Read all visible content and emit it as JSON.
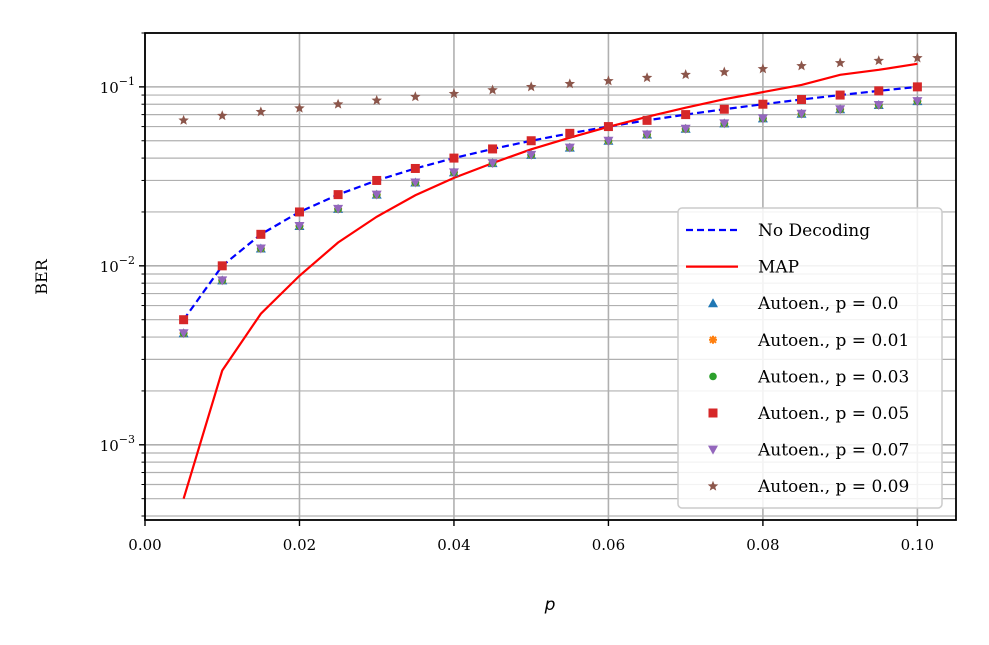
{
  "chart_data": {
    "type": "line",
    "xlabel": "p",
    "ylabel": "BER",
    "xlim": [
      0.0,
      0.105
    ],
    "ylim": [
      0.00038,
      0.2
    ],
    "yscale": "log",
    "grid": true,
    "legend_position": "lower-right",
    "x_ticks": [
      "0.00",
      "0.02",
      "0.04",
      "0.06",
      "0.08",
      "0.10"
    ],
    "x_tick_values": [
      0.0,
      0.02,
      0.04,
      0.06,
      0.08,
      0.1
    ],
    "y_ticks": [
      {
        "mantissa": "10",
        "exp": "−3",
        "value": 0.001
      },
      {
        "mantissa": "10",
        "exp": "−2",
        "value": 0.01
      },
      {
        "mantissa": "10",
        "exp": "−1",
        "value": 0.1
      }
    ],
    "x": [
      0.005,
      0.01,
      0.015,
      0.02,
      0.025,
      0.03,
      0.035,
      0.04,
      0.045,
      0.05,
      0.055,
      0.06,
      0.065,
      0.07,
      0.075,
      0.08,
      0.085,
      0.09,
      0.095,
      0.1
    ],
    "series": [
      {
        "name": "No Decoding",
        "style": "dashed-line",
        "color": "#0000ff",
        "values": [
          0.005,
          0.01,
          0.015,
          0.02,
          0.025,
          0.03,
          0.035,
          0.04,
          0.045,
          0.05,
          0.055,
          0.06,
          0.065,
          0.07,
          0.075,
          0.08,
          0.085,
          0.09,
          0.095,
          0.1
        ]
      },
      {
        "name": "MAP",
        "style": "line",
        "color": "#ff0000",
        "values": [
          0.0005,
          0.0026,
          0.0054,
          0.0088,
          0.0135,
          0.0188,
          0.0248,
          0.031,
          0.0375,
          0.0448,
          0.052,
          0.0598,
          0.068,
          0.0765,
          0.0853,
          0.0935,
          0.1025,
          0.1168,
          0.1245,
          0.1345
        ]
      },
      {
        "name": "Autoen., p = 0.0",
        "style": "marker",
        "marker": "triangle-up",
        "color": "#1f77b4",
        "values": [
          0.0042,
          0.0083,
          0.0125,
          0.0167,
          0.0208,
          0.025,
          0.0292,
          0.0333,
          0.0375,
          0.0417,
          0.0458,
          0.05,
          0.0542,
          0.0583,
          0.0625,
          0.0667,
          0.0708,
          0.075,
          0.0792,
          0.0833
        ]
      },
      {
        "name": "Autoen., p = 0.01",
        "style": "marker",
        "marker": "plus",
        "color": "#ff7f0e",
        "values": [
          0.0042,
          0.0083,
          0.0125,
          0.0167,
          0.0208,
          0.025,
          0.0292,
          0.0333,
          0.0375,
          0.0417,
          0.0458,
          0.05,
          0.0542,
          0.0583,
          0.0625,
          0.0667,
          0.0708,
          0.075,
          0.0792,
          0.0833
        ]
      },
      {
        "name": "Autoen., p = 0.03",
        "style": "marker",
        "marker": "circle",
        "color": "#2ca02c",
        "values": [
          0.0042,
          0.0083,
          0.0125,
          0.0167,
          0.0208,
          0.025,
          0.0292,
          0.0333,
          0.0375,
          0.0417,
          0.0458,
          0.05,
          0.0542,
          0.0583,
          0.0625,
          0.0667,
          0.0708,
          0.075,
          0.0792,
          0.0833
        ]
      },
      {
        "name": "Autoen., p = 0.05",
        "style": "marker",
        "marker": "square",
        "color": "#d62728",
        "values": [
          0.005,
          0.01,
          0.015,
          0.02,
          0.025,
          0.03,
          0.035,
          0.04,
          0.045,
          0.05,
          0.055,
          0.06,
          0.065,
          0.07,
          0.075,
          0.08,
          0.085,
          0.09,
          0.095,
          0.1
        ]
      },
      {
        "name": "Autoen., p = 0.07",
        "style": "marker",
        "marker": "triangle-down",
        "color": "#9467bd",
        "values": [
          0.0042,
          0.0083,
          0.0125,
          0.0167,
          0.0208,
          0.025,
          0.0292,
          0.0333,
          0.0375,
          0.0417,
          0.0458,
          0.05,
          0.0542,
          0.0583,
          0.0625,
          0.0667,
          0.0708,
          0.075,
          0.0792,
          0.0833
        ]
      },
      {
        "name": "Autoen., p = 0.09",
        "style": "marker",
        "marker": "star",
        "color": "#8c564b",
        "values": [
          0.065,
          0.069,
          0.0725,
          0.076,
          0.08,
          0.084,
          0.088,
          0.0915,
          0.096,
          0.1,
          0.104,
          0.108,
          0.1125,
          0.117,
          0.121,
          0.126,
          0.131,
          0.136,
          0.14,
          0.145
        ]
      }
    ]
  }
}
